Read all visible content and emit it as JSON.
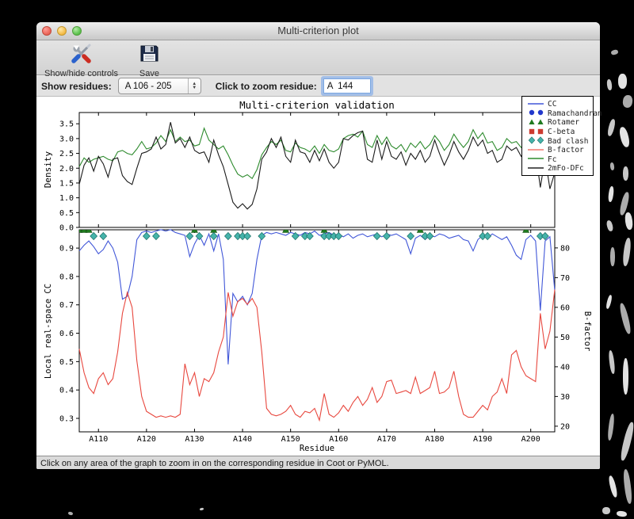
{
  "window": {
    "title": "Multi-criterion plot"
  },
  "toolbar": {
    "show_hide_label": "Show/hide controls",
    "save_label": "Save"
  },
  "controls": {
    "show_residues_label": "Show residues:",
    "residue_range_value": "A 106 - 205",
    "zoom_residue_label": "Click to zoom residue:",
    "zoom_residue_value": "A  144"
  },
  "status_bar": {
    "message": "Click on any area of the graph to zoom in on the corresponding residue in Coot or PyMOL."
  },
  "legend": {
    "entries": [
      {
        "label": "CC",
        "glyph": "line",
        "color": "#4157d8"
      },
      {
        "label": "Ramachandran",
        "glyph": "circles",
        "color": "#2238cc"
      },
      {
        "label": "Rotamer",
        "glyph": "triangles",
        "color": "#1f7a1f"
      },
      {
        "label": "C-beta",
        "glyph": "squares",
        "color": "#cc3b30"
      },
      {
        "label": "Bad clash",
        "glyph": "diamonds",
        "color": "#45b3aa"
      },
      {
        "label": "B-factor",
        "glyph": "line",
        "color": "#f2776f"
      },
      {
        "label": "Fc",
        "glyph": "line",
        "color": "#2e8b2e"
      },
      {
        "label": "2mFo-DFc",
        "glyph": "line",
        "color": "#222222"
      }
    ]
  },
  "chart_data": [
    {
      "type": "line",
      "panel": "density",
      "title": "Multi-criterion validation",
      "ylabel": "Density",
      "xlim": [
        106,
        205
      ],
      "ylim": [
        0,
        3.88
      ],
      "yticks": [
        0.0,
        0.5,
        1.0,
        1.5,
        2.0,
        2.5,
        3.0,
        3.5
      ],
      "x_start": 106,
      "series": [
        {
          "name": "Fc",
          "color": "#2e8b2e",
          "values": [
            2.05,
            2.35,
            2.2,
            2.3,
            2.35,
            2.4,
            2.3,
            2.25,
            2.55,
            2.6,
            2.5,
            2.45,
            2.65,
            2.9,
            2.65,
            2.7,
            2.85,
            3.1,
            2.9,
            3.3,
            2.9,
            3.05,
            2.9,
            2.95,
            2.75,
            2.8,
            3.35,
            2.95,
            2.8,
            2.65,
            2.75,
            2.45,
            2.1,
            1.8,
            1.7,
            1.78,
            1.65,
            1.95,
            2.45,
            2.7,
            2.9,
            2.8,
            2.95,
            2.6,
            2.55,
            2.85,
            2.7,
            2.65,
            2.55,
            2.75,
            2.5,
            2.8,
            2.6,
            2.55,
            2.65,
            3.0,
            3.1,
            3.15,
            3.05,
            3.25,
            2.8,
            2.7,
            3.1,
            2.8,
            3.05,
            2.75,
            2.65,
            2.8,
            2.55,
            2.85,
            2.7,
            2.9,
            2.65,
            2.8,
            3.1,
            2.9,
            2.6,
            2.8,
            3.15,
            2.9,
            2.7,
            2.9,
            3.3,
            3.0,
            3.2,
            2.85,
            2.9,
            2.6,
            2.7,
            3.0,
            2.85,
            2.9,
            2.7,
            2.85,
            2.75,
            2.8,
            2.25,
            2.7,
            2.3,
            2.4
          ]
        },
        {
          "name": "2mFo-DFc",
          "color": "#1a1a1a",
          "values": [
            1.45,
            2.1,
            2.35,
            1.9,
            2.4,
            2.15,
            1.7,
            2.3,
            2.35,
            1.75,
            1.55,
            1.45,
            2.0,
            2.5,
            2.55,
            2.65,
            3.05,
            2.65,
            2.8,
            3.55,
            2.85,
            3.0,
            2.7,
            3.05,
            2.6,
            2.5,
            2.55,
            2.2,
            2.95,
            2.45,
            2.05,
            1.45,
            0.85,
            0.65,
            0.8,
            0.62,
            0.78,
            1.3,
            2.3,
            2.55,
            3.0,
            2.7,
            3.05,
            2.4,
            2.2,
            2.95,
            2.55,
            2.5,
            2.2,
            2.6,
            2.25,
            2.65,
            2.2,
            2.0,
            2.2,
            3.0,
            2.95,
            3.1,
            3.2,
            3.25,
            2.3,
            2.2,
            2.95,
            2.3,
            2.9,
            2.4,
            2.3,
            2.55,
            2.1,
            2.5,
            2.3,
            2.6,
            2.2,
            2.4,
            2.95,
            2.5,
            2.1,
            2.45,
            2.9,
            2.55,
            2.3,
            2.6,
            3.05,
            2.75,
            2.95,
            2.5,
            2.6,
            2.2,
            2.3,
            2.75,
            2.6,
            2.7,
            2.4,
            2.6,
            2.5,
            2.55,
            1.35,
            2.35,
            1.3,
            1.85
          ]
        }
      ]
    },
    {
      "type": "line",
      "panel": "cc-bfactor",
      "ylabel_left": "Local real-space CC",
      "ylabel_right": "B-factor",
      "xlabel": "Residue",
      "xlim": [
        106,
        205
      ],
      "ylim_left": [
        0.2525,
        0.9645
      ],
      "ylim_right": [
        18.1,
        86.1
      ],
      "yticks_left": [
        0.9,
        0.8,
        0.7,
        0.6,
        0.5,
        0.4,
        0.3
      ],
      "yticks_right": [
        80,
        70,
        60,
        50,
        40,
        30,
        20
      ],
      "xticks": [
        110,
        120,
        130,
        140,
        150,
        160,
        170,
        180,
        190,
        200
      ],
      "xtick_labels": [
        "A110",
        "A120",
        "A130",
        "A140",
        "A150",
        "A160",
        "A170",
        "A180",
        "A190",
        "A200"
      ],
      "x_start": 106,
      "series": [
        {
          "name": "CC",
          "axis": "left",
          "color": "#4157d8",
          "values": [
            0.89,
            0.91,
            0.925,
            0.905,
            0.88,
            0.895,
            0.925,
            0.9,
            0.85,
            0.72,
            0.73,
            0.8,
            0.93,
            0.955,
            0.96,
            0.955,
            0.96,
            0.965,
            0.96,
            0.965,
            0.955,
            0.95,
            0.945,
            0.87,
            0.915,
            0.945,
            0.91,
            0.95,
            0.89,
            0.95,
            0.86,
            0.49,
            0.74,
            0.71,
            0.73,
            0.7,
            0.74,
            0.86,
            0.945,
            0.955,
            0.95,
            0.955,
            0.95,
            0.945,
            0.955,
            0.95,
            0.945,
            0.955,
            0.95,
            0.96,
            0.945,
            0.95,
            0.955,
            0.945,
            0.95,
            0.94,
            0.95,
            0.935,
            0.945,
            0.95,
            0.94,
            0.945,
            0.95,
            0.94,
            0.95,
            0.945,
            0.95,
            0.94,
            0.93,
            0.88,
            0.935,
            0.945,
            0.93,
            0.945,
            0.94,
            0.95,
            0.945,
            0.935,
            0.94,
            0.945,
            0.93,
            0.925,
            0.89,
            0.93,
            0.945,
            0.935,
            0.95,
            0.94,
            0.93,
            0.94,
            0.91,
            0.875,
            0.86,
            0.93,
            0.945,
            0.925,
            0.68,
            0.925,
            0.94,
            0.75
          ]
        },
        {
          "name": "B-factor",
          "axis": "right",
          "color": "#e8483f",
          "values": [
            46,
            38,
            33,
            31,
            36,
            38,
            34,
            36,
            45,
            58,
            65,
            60,
            42,
            30,
            25,
            24,
            23,
            23.5,
            23,
            23.5,
            23,
            24,
            41,
            34,
            38,
            30,
            36,
            35,
            38,
            45,
            50,
            65,
            57,
            62,
            63,
            61,
            63,
            60,
            45,
            26,
            24,
            23.5,
            24,
            25,
            27,
            24,
            23,
            25,
            24.5,
            26,
            22,
            31,
            24,
            23,
            24.5,
            27,
            25,
            28,
            30,
            27,
            29,
            33,
            28,
            30,
            35,
            35.5,
            31,
            31.5,
            32,
            31,
            36.5,
            31,
            32,
            33,
            38.5,
            31,
            31.5,
            33,
            38.5,
            30,
            24,
            23,
            23,
            25,
            27,
            25.5,
            30,
            31.5,
            36,
            31,
            44,
            45.5,
            40,
            37,
            36,
            35,
            58,
            46,
            52,
            66
          ]
        }
      ],
      "markers": [
        {
          "name": "Rotamer",
          "shape": "triangle",
          "color": "#1f7a1f",
          "residues": [
            106,
            107,
            108,
            130,
            134,
            149,
            157,
            177,
            199
          ]
        },
        {
          "name": "Bad clash",
          "shape": "diamond",
          "color": "#45b3aa",
          "residues": [
            109,
            111,
            120,
            122,
            129,
            131,
            134,
            137,
            139,
            140,
            141,
            144,
            151,
            153,
            154,
            157,
            158,
            159,
            160,
            168,
            170,
            175,
            178,
            179,
            190,
            191,
            202,
            203
          ]
        }
      ]
    }
  ]
}
